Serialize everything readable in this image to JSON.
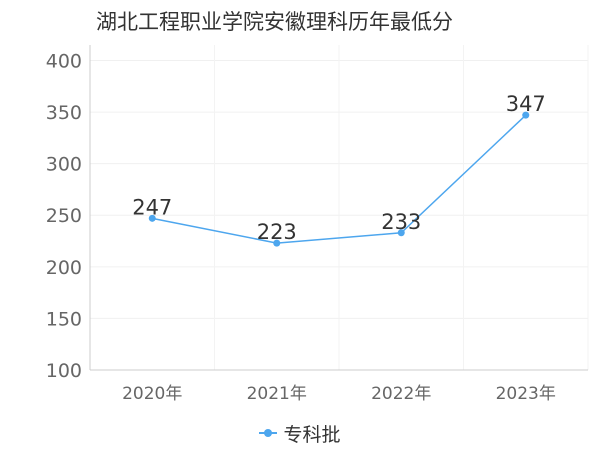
{
  "chart_data": {
    "type": "line",
    "title": "湖北工程职业学院安徽理科历年最低分",
    "categories": [
      "2020年",
      "2021年",
      "2022年",
      "2023年"
    ],
    "series": [
      {
        "name": "专科批",
        "values": [
          247,
          223,
          233,
          347
        ],
        "data_labels": [
          "247",
          "223",
          "233",
          "347"
        ],
        "color": "#4da6ee"
      }
    ],
    "yticks": [
      "100",
      "150",
      "200",
      "250",
      "300",
      "350",
      "400"
    ],
    "ylim": [
      100,
      415
    ],
    "grid": true,
    "legend": "bottom",
    "xlabel": "",
    "ylabel": ""
  }
}
